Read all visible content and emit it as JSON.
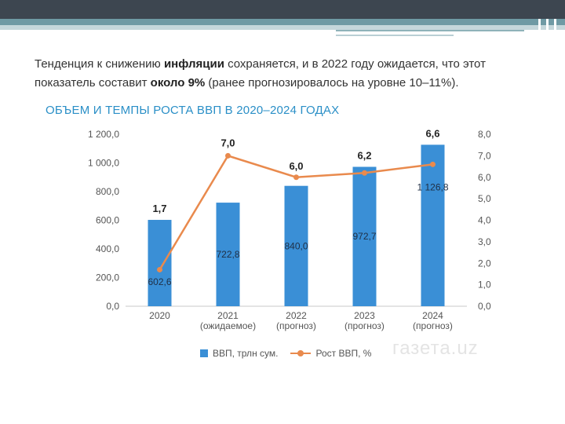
{
  "intro": {
    "part1": "Тенденция к снижению ",
    "bold1": "инфляции",
    "part2": " сохраняется, и в 2022 году ожидается, что этот показатель составит ",
    "bold2": "около 9%",
    "part3": " (ранее прогнозировалось на уровне 10–11%)."
  },
  "watermark": "газета.uz",
  "colors": {
    "bar": "#3a8fd6",
    "line": "#e98a4d",
    "title": "#2a8fc7"
  },
  "chart_data": {
    "type": "bar+line",
    "title": "ОБЪЕМ И ТЕМПЫ РОСТА ВВП В 2020–2024 ГОДАХ",
    "categories": [
      {
        "year": "2020",
        "note": ""
      },
      {
        "year": "2021",
        "note": "(ожидаемое)"
      },
      {
        "year": "2022",
        "note": "(прогноз)"
      },
      {
        "year": "2023",
        "note": "(прогноз)"
      },
      {
        "year": "2024",
        "note": "(прогноз)"
      }
    ],
    "series": [
      {
        "name": "ВВП, трлн сум.",
        "kind": "bar",
        "axis": "left",
        "values": [
          602.6,
          722.8,
          840.0,
          972.7,
          1126.8
        ],
        "labels": [
          "602,6",
          "722,8",
          "840,0",
          "972,7",
          "1 126,8"
        ]
      },
      {
        "name": "Рост ВВП,  %",
        "kind": "line",
        "axis": "right",
        "values": [
          1.7,
          7.0,
          6.0,
          6.2,
          6.6
        ],
        "labels": [
          "1,7",
          "7,0",
          "6,0",
          "6,2",
          "6,6"
        ]
      }
    ],
    "y_left": {
      "min": 0,
      "max": 1200,
      "ticks": [
        "0,0",
        "200,0",
        "400,0",
        "600,0",
        "800,0",
        "1 000,0",
        "1 200,0"
      ]
    },
    "y_right": {
      "min": 0,
      "max": 8,
      "ticks": [
        "0,0",
        "1,0",
        "2,0",
        "3,0",
        "4,0",
        "5,0",
        "6,0",
        "7,0",
        "8,0"
      ]
    },
    "legend_position": "bottom",
    "grid": false
  }
}
